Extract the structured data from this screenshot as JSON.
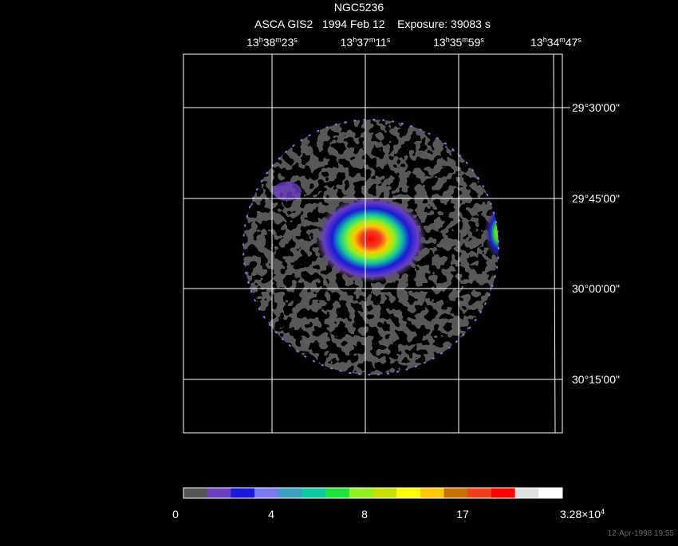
{
  "header": {
    "title": "NGC5236",
    "subtitle": "ASCA GIS2   1994 Feb 12    Exposure: 39083 s"
  },
  "ra_labels": [
    [
      "13",
      "h",
      "38",
      "m",
      "23",
      "s"
    ],
    [
      "13",
      "h",
      "37",
      "m",
      "11",
      "s"
    ],
    [
      "13",
      "h",
      "35",
      "m",
      "59",
      "s"
    ],
    [
      "13",
      "h",
      "34",
      "m",
      "47",
      "s"
    ]
  ],
  "dec_labels": [
    "29°30'00\"",
    "29°45'00\"",
    "30°00'00\"",
    "30°15'00\""
  ],
  "colorbar": {
    "labels": [
      [
        "0"
      ],
      [
        "4"
      ],
      [
        "8"
      ],
      [
        "17"
      ],
      [
        "3.28×10",
        "4"
      ]
    ],
    "colors": [
      "#555555",
      "#6a3fc0",
      "#1a1ad8",
      "#7a7af0",
      "#3aa0c0",
      "#10c8a0",
      "#20e040",
      "#90f020",
      "#c8e000",
      "#ffff00",
      "#ffc800",
      "#c87000",
      "#f04020",
      "#ff0000",
      "#e0e0e0",
      "#ffffff"
    ]
  },
  "footer": {
    "timestamp": "12-Apr-1998 19:55"
  }
}
